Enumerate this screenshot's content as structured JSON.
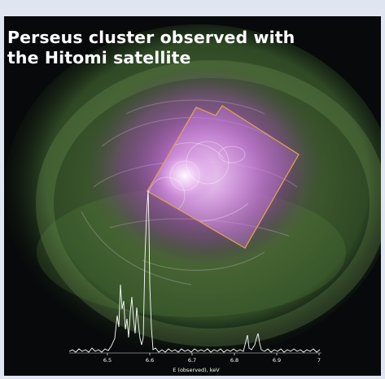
{
  "title_lines": [
    "Perseus cluster observed with",
    "the Hitomi satellite"
  ],
  "spectrum": {
    "xlabel": "E (observed), keV",
    "ticks": [
      "6.5",
      "6.6",
      "6.7",
      "6.8",
      "6.9",
      "7"
    ]
  },
  "colors": {
    "outer_halo": "#5f9a45",
    "inner_halo": "#9a4aa6",
    "hitomi_field": "#e0a050",
    "spectrum_line": "#ffffff"
  }
}
